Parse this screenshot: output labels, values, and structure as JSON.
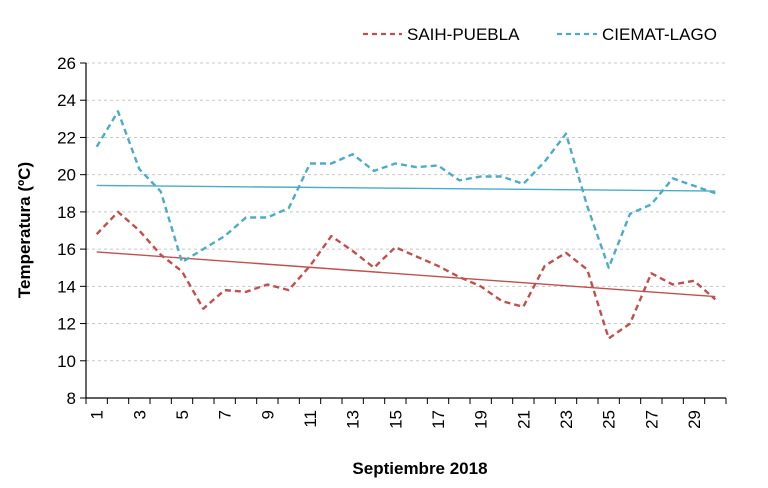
{
  "chart_data": {
    "type": "line",
    "title": "",
    "xlabel": "Septiembre 2018",
    "ylabel": "Temperatura (ºC)",
    "ylim": [
      8,
      26
    ],
    "y_ticks": [
      "8",
      "10",
      "12",
      "14",
      "16",
      "18",
      "20",
      "22",
      "24",
      "26"
    ],
    "x": [
      1,
      2,
      3,
      4,
      5,
      6,
      7,
      8,
      9,
      10,
      11,
      12,
      13,
      14,
      15,
      16,
      17,
      18,
      19,
      20,
      21,
      22,
      23,
      24,
      25,
      26,
      27,
      28,
      29,
      30
    ],
    "x_tick_labels": [
      "1",
      "3",
      "5",
      "7",
      "9",
      "11",
      "13",
      "15",
      "17",
      "19",
      "21",
      "23",
      "25",
      "27",
      "29"
    ],
    "grid": "horizontal dashed",
    "legend_position": "top-right",
    "series": [
      {
        "name": "SAIH-PUEBLA",
        "color": "#c0504d",
        "style": "dashed",
        "values": [
          16.8,
          18.0,
          17.0,
          15.7,
          14.8,
          12.8,
          13.8,
          13.7,
          14.1,
          13.8,
          15.1,
          16.7,
          15.9,
          15.0,
          16.1,
          15.6,
          15.1,
          14.5,
          14.0,
          13.2,
          12.9,
          15.1,
          15.8,
          14.9,
          11.2,
          12.0,
          14.7,
          14.1,
          14.3,
          13.3
        ],
        "trend": [
          15.85,
          13.45
        ]
      },
      {
        "name": "CIEMAT-LAGO",
        "color": "#4bacc6",
        "style": "dashed",
        "values": [
          21.5,
          23.4,
          20.3,
          19.1,
          15.3,
          16.0,
          16.7,
          17.7,
          17.7,
          18.2,
          20.6,
          20.6,
          21.1,
          20.2,
          20.6,
          20.4,
          20.5,
          19.7,
          19.9,
          19.9,
          19.5,
          20.7,
          22.2,
          18.3,
          15.0,
          17.9,
          18.4,
          19.8,
          19.4,
          19.0
        ],
        "trend": [
          19.42,
          19.12
        ]
      }
    ]
  }
}
